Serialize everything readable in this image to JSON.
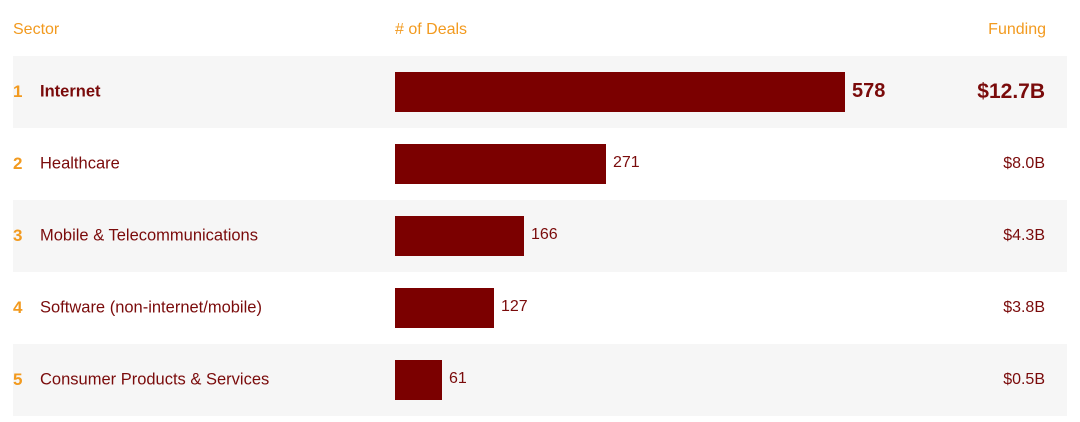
{
  "header": {
    "sector": "Sector",
    "deals": "# of Deals",
    "funding": "Funding"
  },
  "chart_data": {
    "type": "bar",
    "orientation": "horizontal",
    "categories": [
      "Internet",
      "Healthcare",
      "Mobile & Telecommunications",
      "Software (non-internet/mobile)",
      "Consumer Products & Services"
    ],
    "ranks": [
      "1",
      "2",
      "3",
      "4",
      "5"
    ],
    "values": [
      578,
      271,
      166,
      127,
      61
    ],
    "value_labels": [
      "578",
      "271",
      "166",
      "127",
      "61"
    ],
    "funding": [
      "$12.7B",
      "$8.0B",
      "$4.3B",
      "$3.8B",
      "$0.5B"
    ],
    "bar_color": "#7b0000",
    "accent_color": "#f29a1f",
    "text_color": "#7a0b0b"
  }
}
